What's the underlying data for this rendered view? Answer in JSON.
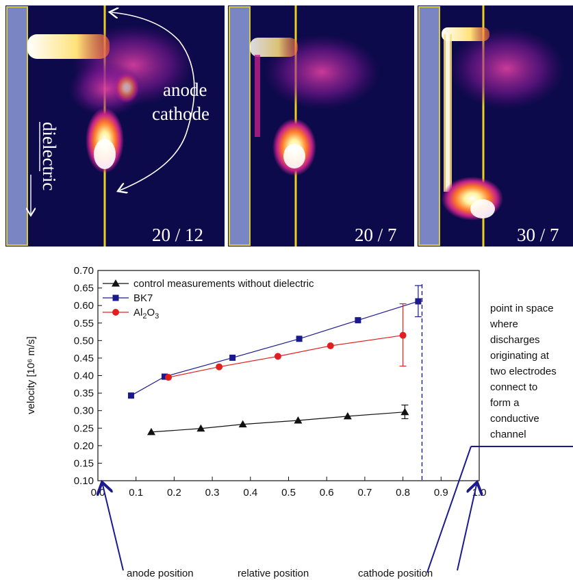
{
  "panels": {
    "items": [
      {
        "label": "20 / 12"
      },
      {
        "label": "20 / 7"
      },
      {
        "label": "30 / 7"
      }
    ],
    "annotation_anode": "anode",
    "annotation_cathode": "cathode",
    "annotation_dielectric": "dielectric",
    "colors": {
      "background": "#0c0a4a",
      "dielectric": "#7a86c4",
      "electrode": "#e8d020",
      "glow": "#ffe070"
    }
  },
  "chart_data": {
    "type": "line",
    "ylabel": "velocity [10⁶ m/s]",
    "xlim": [
      0.0,
      1.0
    ],
    "ylim": [
      0.1,
      0.7
    ],
    "xticks": [
      "0.0",
      "0.1",
      "0.2",
      "0.3",
      "0.4",
      "0.5",
      "0.6",
      "0.7",
      "0.8",
      "0.9",
      "1.0"
    ],
    "yticks": [
      "0.10",
      "0.15",
      "0.20",
      "0.25",
      "0.30",
      "0.35",
      "0.40",
      "0.45",
      "0.50",
      "0.55",
      "0.60",
      "0.65",
      "0.70"
    ],
    "legend_position": "top-left",
    "series": [
      {
        "name": "control measurements without dielectric",
        "color": "#111111",
        "marker": "triangle",
        "x": [
          0.14,
          0.27,
          0.38,
          0.525,
          0.655,
          0.805
        ],
        "y": [
          0.239,
          0.249,
          0.261,
          0.272,
          0.284,
          0.296
        ],
        "errorbars": [
          {
            "index": 5,
            "low": 0.277,
            "high": 0.316
          }
        ]
      },
      {
        "name": "BK7",
        "color": "#1a1a8c",
        "marker": "square",
        "x": [
          0.087,
          0.175,
          0.353,
          0.528,
          0.682,
          0.84
        ],
        "y": [
          0.343,
          0.397,
          0.451,
          0.505,
          0.558,
          0.612
        ],
        "errorbars": [
          {
            "index": 5,
            "low": 0.568,
            "high": 0.657
          }
        ]
      },
      {
        "name": "Al2O3",
        "color": "#e02020",
        "marker": "circle",
        "x": [
          0.185,
          0.318,
          0.472,
          0.61,
          0.8
        ],
        "y": [
          0.395,
          0.425,
          0.455,
          0.485,
          0.515
        ],
        "errorbars": [
          {
            "index": 4,
            "low": 0.427,
            "high": 0.605
          }
        ]
      }
    ],
    "vline_x": 0.85,
    "annotations": {
      "right_text": [
        "point in space",
        "where",
        "discharges",
        "originating at",
        "two electrodes",
        "connect to",
        "form a",
        "conductive",
        "channel"
      ],
      "bottom_anode": "anode position",
      "bottom_relative": "relative position",
      "bottom_cathode": "cathode position"
    }
  }
}
